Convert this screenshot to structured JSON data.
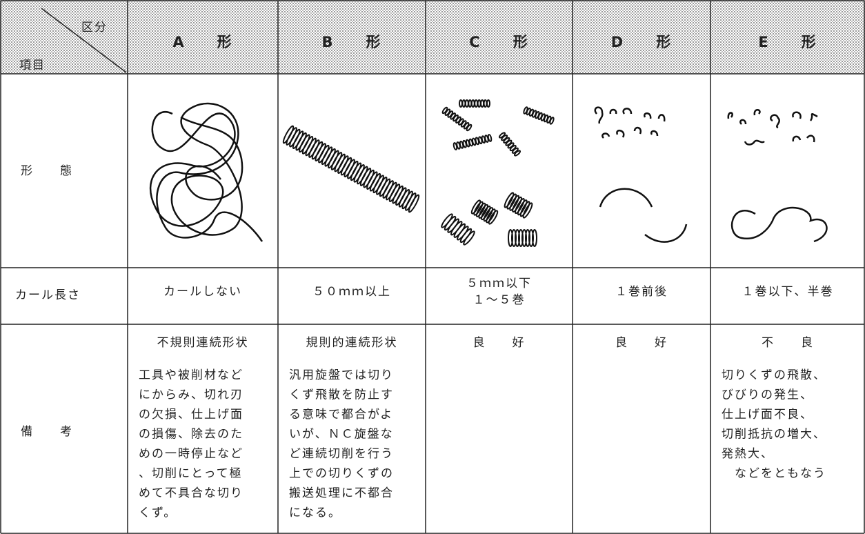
{
  "table": {
    "corner": {
      "top": "区分",
      "bottom": "項目"
    },
    "columns": [
      "A　　形",
      "B　　形",
      "C　　形",
      "D　　形",
      "E　　形"
    ],
    "shape_row": {
      "label": "形　　態"
    },
    "curl_row": {
      "label": "カール長さ",
      "cells": [
        [
          "カールしない"
        ],
        [
          "５０ｍｍ以上"
        ],
        [
          "５ｍｍ以下",
          "１～５巻"
        ],
        [
          "１巻前後"
        ],
        [
          "１巻以下、半巻"
        ]
      ]
    },
    "remarks_row": {
      "label": "備　　考",
      "cells": [
        {
          "summary": "不規則連続形状",
          "body": [
            "工具や被削材など",
            "にからみ、切れ刃",
            "の欠損、仕上げ面",
            "の損傷、除去のた",
            "めの一時停止など",
            "、切削にとって極",
            "めて不具合な切り",
            "くず。"
          ]
        },
        {
          "summary": "規則的連続形状",
          "body": [
            "汎用旋盤では切り",
            "くず飛散を防止す",
            "る意味で都合がよ",
            "いが、ＮＣ旋盤な",
            "ど連続切削を行う",
            "上での切りくずの",
            "搬送処理に不都合",
            "になる。"
          ]
        },
        {
          "summary": "良　　好"
        },
        {
          "summary": "良　　好"
        },
        {
          "summary": "不　　良",
          "body": [
            "切りくずの飛散、",
            "びびりの発生、",
            "仕上げ面不良、",
            "切削抵抗の増大、",
            "発熱大、",
            "　などをともなう"
          ]
        }
      ]
    }
  }
}
